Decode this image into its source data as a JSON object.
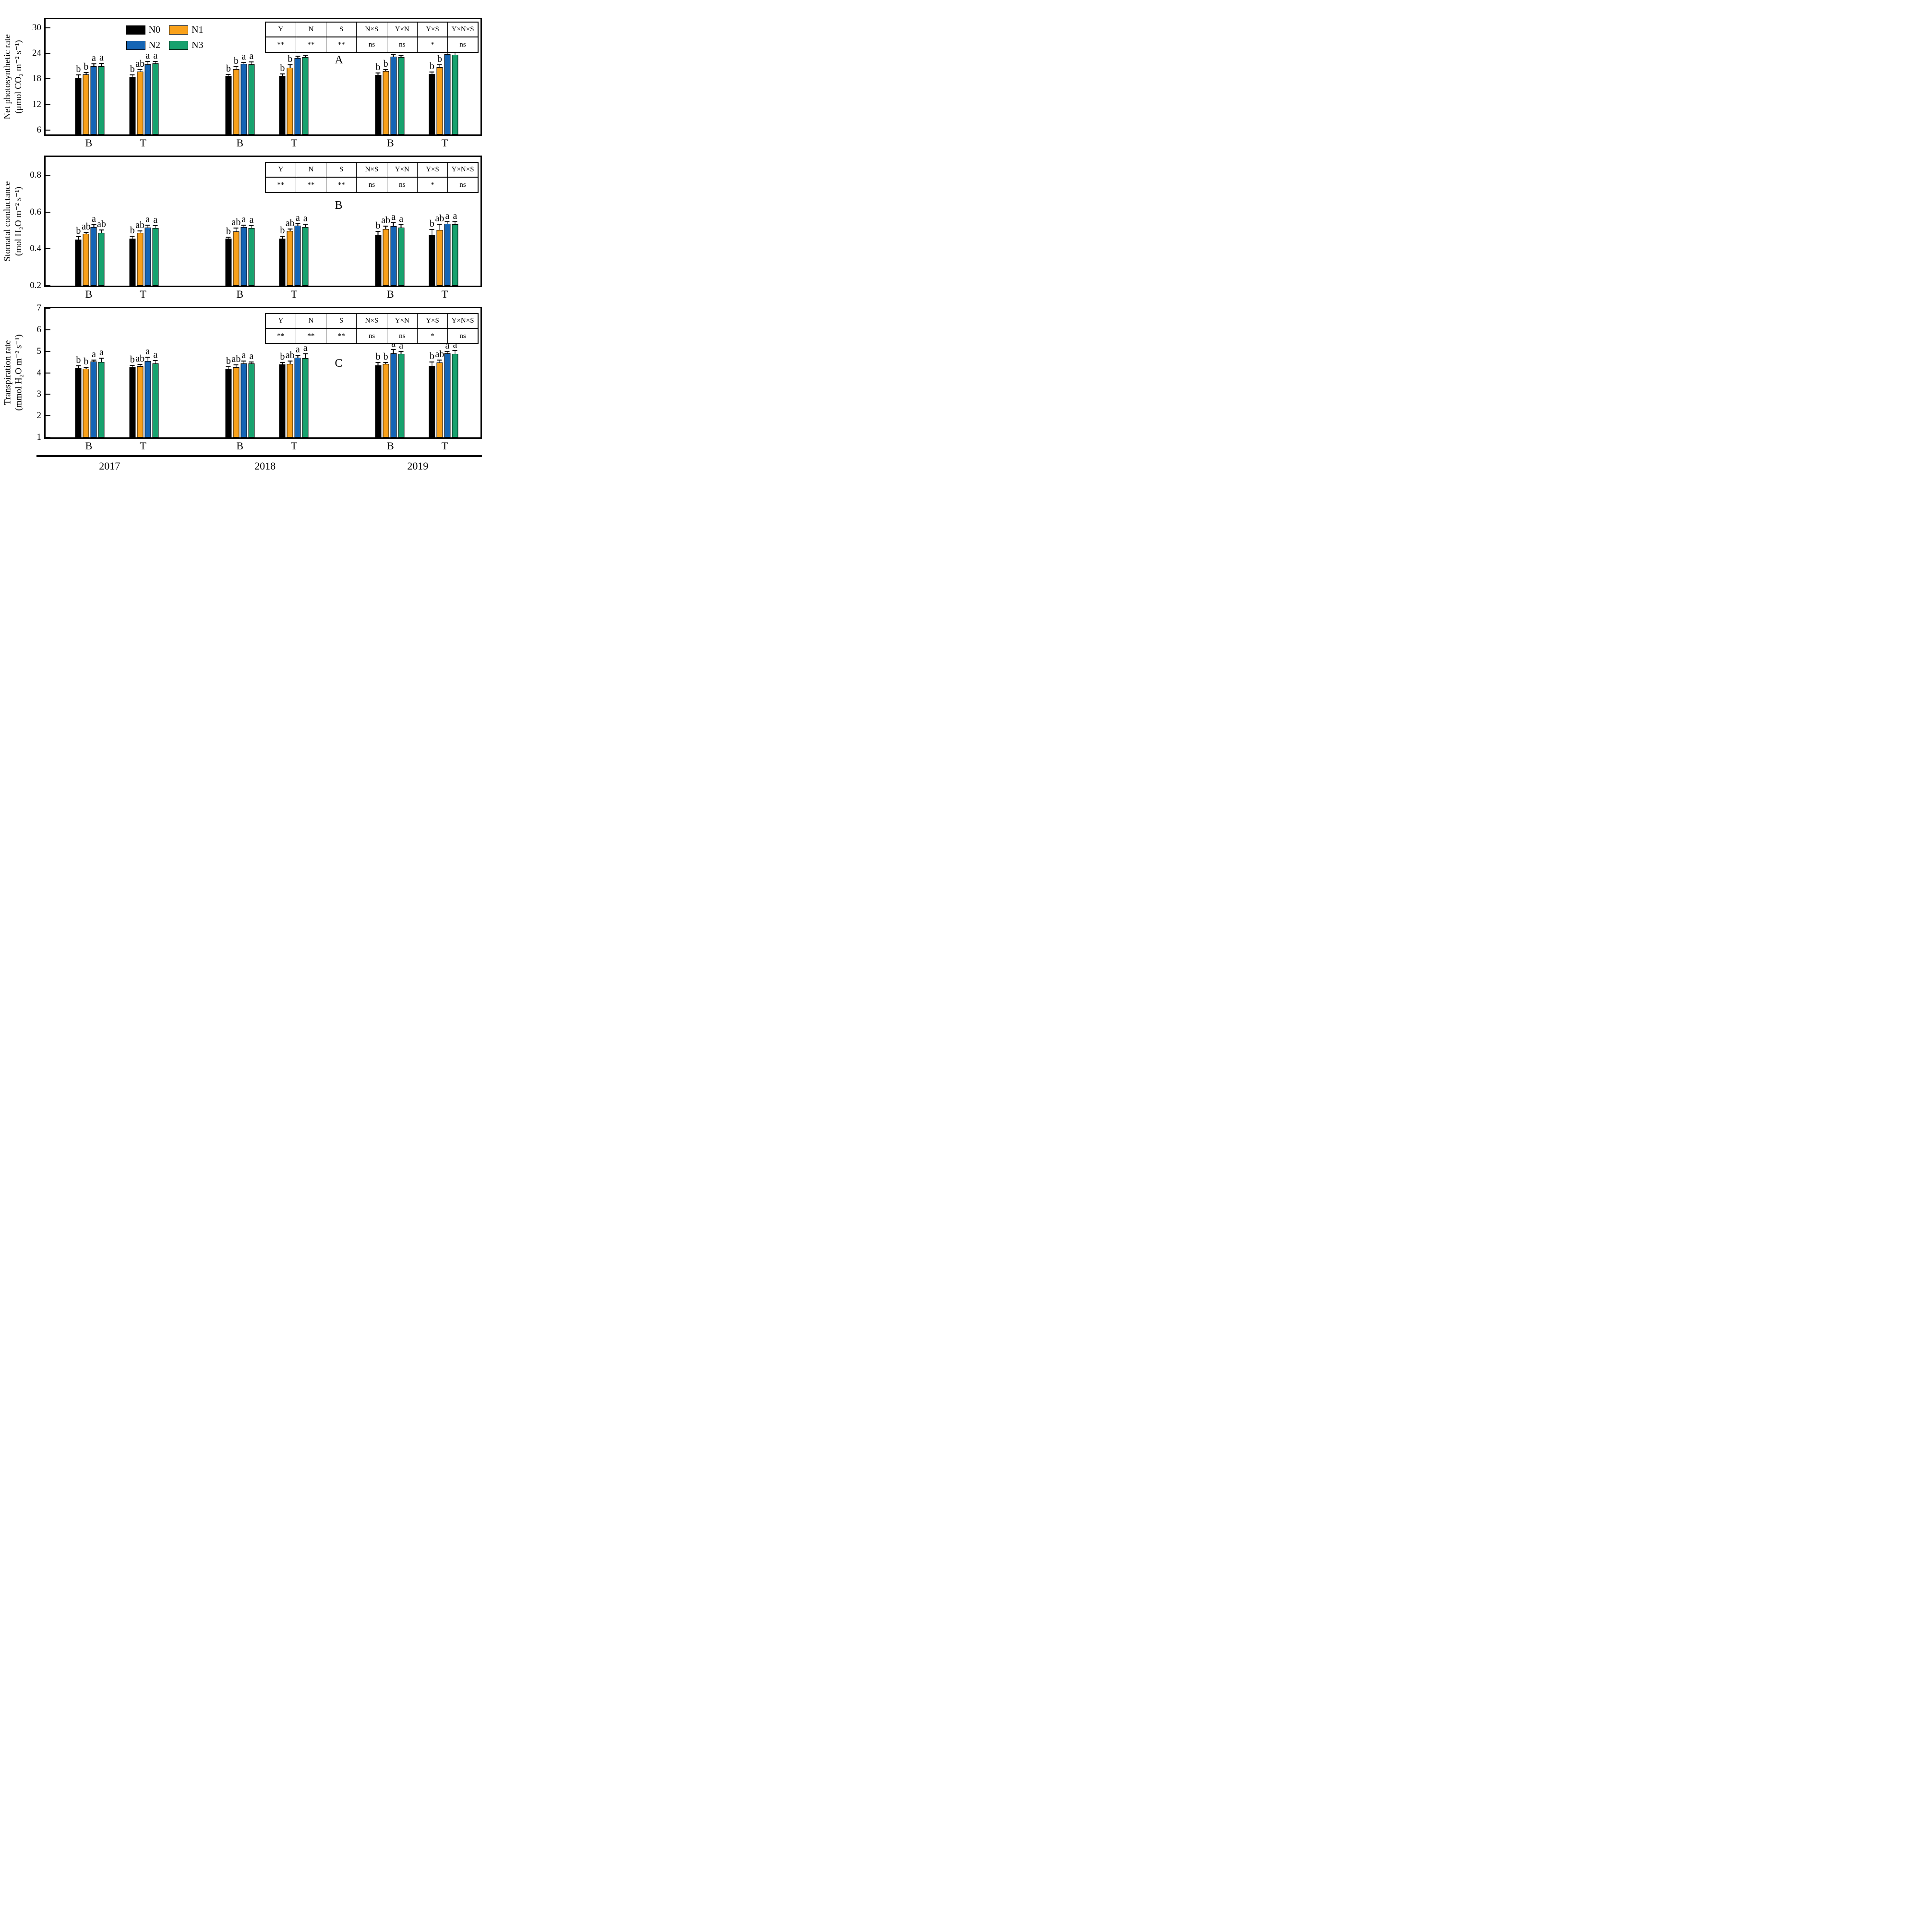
{
  "legend": {
    "items": [
      {
        "label": "N0",
        "color": "#000000"
      },
      {
        "label": "N1",
        "color": "#F9A11B"
      },
      {
        "label": "N2",
        "color": "#1565B5"
      },
      {
        "label": "N3",
        "color": "#17A26E"
      }
    ]
  },
  "anova": {
    "headers": [
      "Y",
      "N",
      "S",
      "N×S",
      "Y×N",
      "Y×S",
      "Y×N×S"
    ],
    "values": [
      "**",
      "**",
      "**",
      "ns",
      "ns",
      "*",
      "ns"
    ]
  },
  "x_axis": {
    "subgroup_labels": [
      "B",
      "T"
    ],
    "year_labels": [
      "2017",
      "2018",
      "2019"
    ]
  },
  "chart_data": [
    {
      "type": "bar",
      "panel_letter": "A",
      "ylabel": "Net photosynthetic rate",
      "yunits": "(μmol CO₂ m⁻² s⁻¹)",
      "ylim": [
        5,
        32
      ],
      "yticks": [
        "6",
        "12",
        "18",
        "24",
        "30"
      ],
      "legend_position": "top-left",
      "grid": "off",
      "series": [
        "N0",
        "N1",
        "N2",
        "N3"
      ],
      "groups": [
        {
          "year": "2017",
          "site": "B",
          "values": [
            18.2,
            19.1,
            21.0,
            21.0
          ],
          "errors": [
            0.6,
            0.25,
            0.4,
            0.5
          ],
          "letters": [
            "b",
            "b",
            "a",
            "a"
          ]
        },
        {
          "year": "2017",
          "site": "T",
          "values": [
            18.5,
            19.7,
            21.4,
            21.7
          ],
          "errors": [
            0.3,
            0.4,
            0.6,
            0.25
          ],
          "letters": [
            "b",
            "ab",
            "a",
            "a"
          ]
        },
        {
          "year": "2018",
          "site": "B",
          "values": [
            18.7,
            20.3,
            21.5,
            21.4
          ],
          "errors": [
            0.3,
            0.5,
            0.25,
            0.45
          ],
          "letters": [
            "b",
            "b",
            "a",
            "a"
          ]
        },
        {
          "year": "2018",
          "site": "T",
          "values": [
            18.7,
            20.6,
            22.9,
            23.1
          ],
          "errors": [
            0.35,
            0.55,
            0.35,
            0.3
          ],
          "letters": [
            "b",
            "b",
            "a",
            "a"
          ]
        },
        {
          "year": "2019",
          "site": "B",
          "values": [
            18.9,
            19.9,
            23.2,
            23.1
          ],
          "errors": [
            0.35,
            0.15,
            0.5,
            0.2
          ],
          "letters": [
            "b",
            "b",
            "a",
            "a"
          ]
        },
        {
          "year": "2019",
          "site": "T",
          "values": [
            19.2,
            20.7,
            23.8,
            23.7
          ],
          "errors": [
            0.3,
            0.5,
            0.4,
            0.5
          ],
          "letters": [
            "b",
            "b",
            "a",
            "a"
          ]
        }
      ]
    },
    {
      "type": "bar",
      "panel_letter": "B",
      "ylabel": "Stomatal conductance",
      "yunits": "(mol H₂O m⁻² s⁻¹)",
      "ylim": [
        0.2,
        0.9
      ],
      "yticks": [
        "0.2",
        "0.4",
        "0.6",
        "0.8"
      ],
      "grid": "off",
      "series": [
        "N0",
        "N1",
        "N2",
        "N3"
      ],
      "groups": [
        {
          "year": "2017",
          "site": "B",
          "values": [
            0.451,
            0.483,
            0.518,
            0.488
          ],
          "errors": [
            0.012,
            0.005,
            0.012,
            0.012
          ],
          "letters": [
            "b",
            "ab",
            "a",
            "ab"
          ]
        },
        {
          "year": "2017",
          "site": "T",
          "values": [
            0.455,
            0.487,
            0.517,
            0.514
          ],
          "errors": [
            0.012,
            0.008,
            0.009,
            0.01
          ],
          "letters": [
            "b",
            "ab",
            "a",
            "a"
          ]
        },
        {
          "year": "2018",
          "site": "B",
          "values": [
            0.456,
            0.495,
            0.52,
            0.514
          ],
          "errors": [
            0.004,
            0.015,
            0.007,
            0.01
          ],
          "letters": [
            "b",
            "ab",
            "a",
            "a"
          ]
        },
        {
          "year": "2018",
          "site": "T",
          "values": [
            0.457,
            0.499,
            0.526,
            0.52
          ],
          "errors": [
            0.009,
            0.006,
            0.008,
            0.011
          ],
          "letters": [
            "b",
            "ab",
            "a",
            "a"
          ]
        },
        {
          "year": "2019",
          "site": "B",
          "values": [
            0.474,
            0.509,
            0.525,
            0.517
          ],
          "errors": [
            0.018,
            0.012,
            0.015,
            0.011
          ],
          "letters": [
            "b",
            "ab",
            "a",
            "a"
          ]
        },
        {
          "year": "2019",
          "site": "T",
          "values": [
            0.473,
            0.504,
            0.537,
            0.535
          ],
          "errors": [
            0.03,
            0.028,
            0.007,
            0.01
          ],
          "letters": [
            "b",
            "ab",
            "a",
            "a"
          ]
        }
      ]
    },
    {
      "type": "bar",
      "panel_letter": "C",
      "ylabel": "Transpiration rate",
      "yunits": "(mmol H₂O m⁻² s⁻¹)",
      "ylim": [
        1,
        7
      ],
      "yticks": [
        "1",
        "2",
        "3",
        "4",
        "5",
        "6",
        "7"
      ],
      "grid": "off",
      "series": [
        "N0",
        "N1",
        "N2",
        "N3"
      ],
      "groups": [
        {
          "year": "2017",
          "site": "B",
          "values": [
            4.22,
            4.18,
            4.53,
            4.5
          ],
          "errors": [
            0.08,
            0.06,
            0.04,
            0.15
          ],
          "letters": [
            "b",
            "b",
            "a",
            "a"
          ]
        },
        {
          "year": "2017",
          "site": "T",
          "values": [
            4.25,
            4.31,
            4.55,
            4.43
          ],
          "errors": [
            0.07,
            0.06,
            0.16,
            0.12
          ],
          "letters": [
            "b",
            "ab",
            "a",
            "a"
          ]
        },
        {
          "year": "2018",
          "site": "B",
          "values": [
            4.19,
            4.26,
            4.44,
            4.44
          ],
          "errors": [
            0.07,
            0.09,
            0.09,
            0.03
          ],
          "letters": [
            "b",
            "ab",
            "a",
            "a"
          ]
        },
        {
          "year": "2018",
          "site": "T",
          "values": [
            4.4,
            4.41,
            4.7,
            4.69
          ],
          "errors": [
            0.06,
            0.11,
            0.09,
            0.18
          ],
          "letters": [
            "b",
            "ab",
            "a",
            "a"
          ]
        },
        {
          "year": "2019",
          "site": "B",
          "values": [
            4.35,
            4.42,
            4.9,
            4.88
          ],
          "errors": [
            0.1,
            0.03,
            0.16,
            0.08
          ],
          "letters": [
            "b",
            "b",
            "a",
            "a"
          ]
        },
        {
          "year": "2019",
          "site": "T",
          "values": [
            4.33,
            4.48,
            4.91,
            4.88
          ],
          "errors": [
            0.16,
            0.08,
            0.07,
            0.13
          ],
          "letters": [
            "b",
            "ab",
            "a",
            "a"
          ]
        }
      ]
    }
  ]
}
